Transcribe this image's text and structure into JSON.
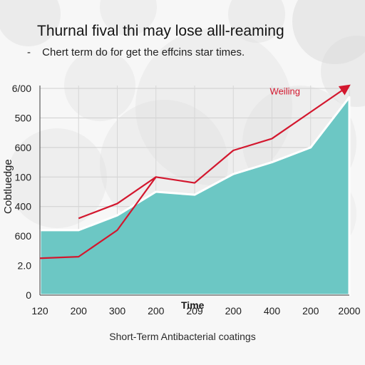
{
  "header": {
    "title": "Thurnal fival thi may lose alll-reaming",
    "subtitle_bullet": "-",
    "subtitle": "Chert term do for get the effcins star times."
  },
  "caption": "Short-Term Antibacterial coatings",
  "colors": {
    "area": "#6cc7c4",
    "area_edge": "#ffffff",
    "line": "#d3172e",
    "background_bubbles": "#dcdcdc"
  },
  "chart_data": {
    "type": "area",
    "title": "Thurnal fival thi may lose alll-reaming",
    "subtitle": "Chert term do for get the effcins star times.",
    "xlabel": "Time",
    "ylabel": "Cobtluedge",
    "x_tick_labels": [
      "120",
      "200",
      "300",
      "200",
      "209",
      "200",
      "400",
      "200",
      "2000"
    ],
    "y_tick_labels": [
      "0",
      "2.0",
      "600",
      "400",
      "100",
      "600",
      "500",
      "6/00"
    ],
    "grid": true,
    "legend": "none",
    "annotation": "Weiling",
    "series": [
      {
        "kind": "area",
        "values": [
          2.2,
          2.2,
          2.7,
          3.5,
          3.4,
          4.1,
          4.5,
          5.0,
          6.7
        ]
      },
      {
        "kind": "line",
        "name": "Weiling",
        "values": [
          1.25,
          1.3,
          2.2,
          4.0,
          3.8,
          4.9,
          5.3,
          6.2,
          7.1
        ],
        "first_x_index": 0,
        "arrow_at_end": true
      },
      {
        "kind": "line-segment",
        "values": [
          2.6,
          3.1,
          4.0
        ],
        "x_index_start": 1
      }
    ]
  }
}
